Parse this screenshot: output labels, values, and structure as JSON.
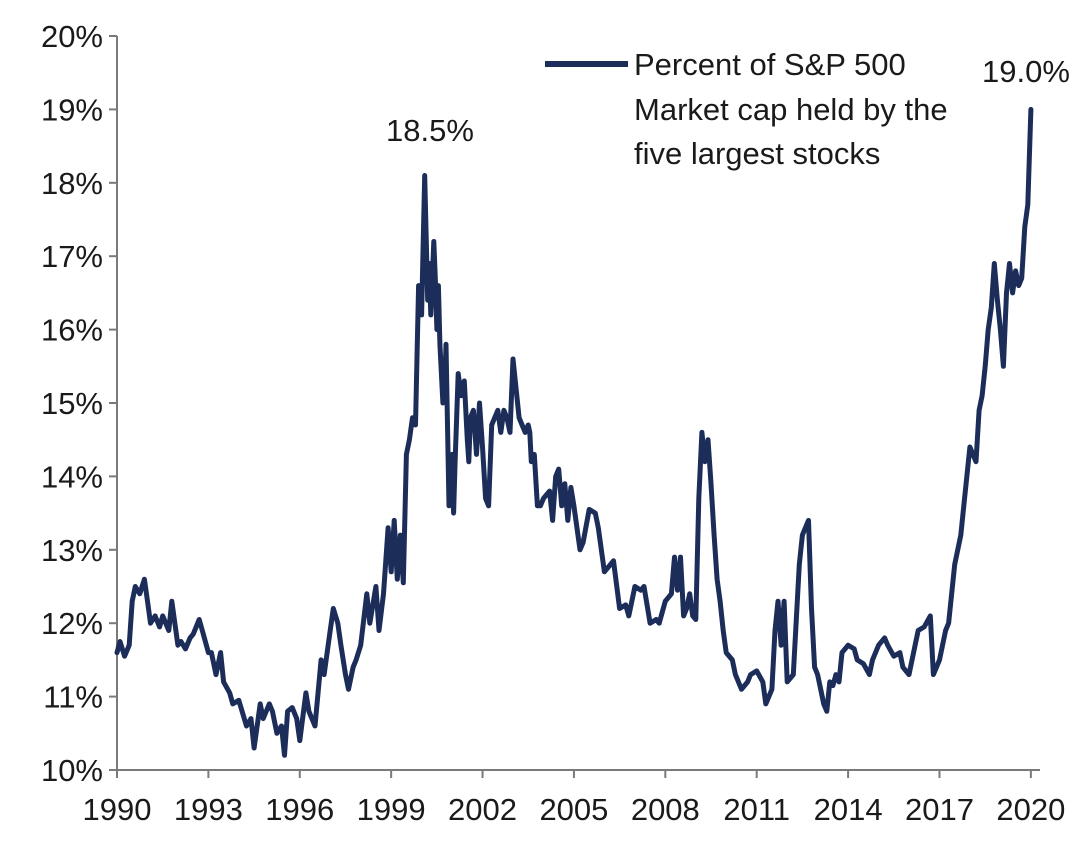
{
  "chart_data": {
    "type": "line",
    "xlim": [
      1990,
      2020.3
    ],
    "ylim": [
      10,
      20
    ],
    "y_tick_values": [
      10,
      11,
      12,
      13,
      14,
      15,
      16,
      17,
      18,
      19,
      20
    ],
    "y_tick_labels": [
      "10%",
      "11%",
      "12%",
      "13%",
      "14%",
      "15%",
      "16%",
      "17%",
      "18%",
      "19%",
      "20%"
    ],
    "x_tick_values": [
      1990,
      1993,
      1996,
      1999,
      2002,
      2005,
      2008,
      2011,
      2014,
      2017,
      2020
    ],
    "x_tick_labels": [
      "1990",
      "1993",
      "1996",
      "1999",
      "2002",
      "2005",
      "2008",
      "2011",
      "2014",
      "2017",
      "2020"
    ],
    "grid": false,
    "legend_position": "top-right",
    "line_color": "#1c2d5a",
    "series": [
      {
        "name": "Percent of S&P 500 Market cap held by the five largest stocks",
        "x": [
          1990.0,
          1990.1,
          1990.25,
          1990.4,
          1990.5,
          1990.6,
          1990.75,
          1990.9,
          1991.0,
          1991.1,
          1991.25,
          1991.4,
          1991.5,
          1991.7,
          1991.8,
          1992.0,
          1992.1,
          1992.25,
          1992.4,
          1992.5,
          1992.7,
          1992.8,
          1993.0,
          1993.1,
          1993.25,
          1993.4,
          1993.5,
          1993.7,
          1993.8,
          1994.0,
          1994.25,
          1994.4,
          1994.5,
          1994.7,
          1994.8,
          1995.0,
          1995.1,
          1995.25,
          1995.4,
          1995.5,
          1995.6,
          1995.75,
          1995.9,
          1996.0,
          1996.2,
          1996.3,
          1996.5,
          1996.7,
          1996.8,
          1997.0,
          1997.1,
          1997.25,
          1997.35,
          1997.5,
          1997.6,
          1997.75,
          1997.85,
          1998.0,
          1998.2,
          1998.3,
          1998.5,
          1998.6,
          1998.75,
          1998.9,
          1999.0,
          1999.1,
          1999.2,
          1999.3,
          1999.4,
          1999.5,
          1999.6,
          1999.7,
          1999.8,
          1999.9,
          2000.0,
          2000.1,
          2000.2,
          2000.25,
          2000.3,
          2000.4,
          2000.45,
          2000.5,
          2000.55,
          2000.6,
          2000.7,
          2000.75,
          2000.8,
          2000.9,
          2001.0,
          2001.05,
          2001.1,
          2001.2,
          2001.3,
          2001.4,
          2001.5,
          2001.55,
          2001.6,
          2001.7,
          2001.8,
          2001.9,
          2002.0,
          2002.1,
          2002.2,
          2002.3,
          2002.4,
          2002.5,
          2002.6,
          2002.7,
          2002.8,
          2002.9,
          2003.0,
          2003.2,
          2003.3,
          2003.4,
          2003.5,
          2003.55,
          2003.6,
          2003.7,
          2003.8,
          2003.9,
          2004.0,
          2004.2,
          2004.3,
          2004.4,
          2004.5,
          2004.6,
          2004.7,
          2004.8,
          2004.9,
          2005.0,
          2005.2,
          2005.3,
          2005.5,
          2005.7,
          2005.8,
          2006.0,
          2006.2,
          2006.3,
          2006.5,
          2006.7,
          2006.8,
          2007.0,
          2007.2,
          2007.3,
          2007.5,
          2007.7,
          2007.8,
          2008.0,
          2008.2,
          2008.3,
          2008.4,
          2008.5,
          2008.6,
          2008.7,
          2008.8,
          2008.9,
          2009.0,
          2009.1,
          2009.2,
          2009.3,
          2009.4,
          2009.5,
          2009.6,
          2009.7,
          2009.8,
          2009.9,
          2010.0,
          2010.2,
          2010.3,
          2010.5,
          2010.7,
          2010.8,
          2011.0,
          2011.2,
          2011.3,
          2011.5,
          2011.6,
          2011.7,
          2011.8,
          2011.9,
          2012.0,
          2012.2,
          2012.4,
          2012.5,
          2012.6,
          2012.7,
          2012.8,
          2012.9,
          2013.0,
          2013.1,
          2013.2,
          2013.3,
          2013.4,
          2013.5,
          2013.6,
          2013.7,
          2013.8,
          2014.0,
          2014.2,
          2014.3,
          2014.5,
          2014.7,
          2014.8,
          2015.0,
          2015.2,
          2015.3,
          2015.5,
          2015.7,
          2015.8,
          2016.0,
          2016.2,
          2016.3,
          2016.5,
          2016.7,
          2016.8,
          2017.0,
          2017.2,
          2017.3,
          2017.5,
          2017.7,
          2017.8,
          2018.0,
          2018.2,
          2018.3,
          2018.4,
          2018.5,
          2018.6,
          2018.7,
          2018.8,
          2018.9,
          2019.0,
          2019.1,
          2019.2,
          2019.3,
          2019.4,
          2019.5,
          2019.6,
          2019.7,
          2019.8,
          2019.9,
          2020.0
        ],
        "values": [
          11.6,
          11.75,
          11.55,
          11.7,
          12.3,
          12.5,
          12.4,
          12.6,
          12.3,
          12.0,
          12.1,
          11.95,
          12.1,
          11.9,
          12.3,
          11.7,
          11.75,
          11.65,
          11.8,
          11.85,
          12.05,
          11.9,
          11.6,
          11.6,
          11.3,
          11.6,
          11.2,
          11.05,
          10.9,
          10.95,
          10.6,
          10.7,
          10.3,
          10.9,
          10.7,
          10.9,
          10.8,
          10.5,
          10.6,
          10.2,
          10.8,
          10.85,
          10.7,
          10.4,
          11.05,
          10.8,
          10.6,
          11.5,
          11.3,
          11.9,
          12.2,
          12.0,
          11.7,
          11.3,
          11.1,
          11.4,
          11.5,
          11.7,
          12.4,
          12.0,
          12.5,
          11.9,
          12.4,
          13.3,
          12.7,
          13.4,
          12.6,
          13.2,
          12.55,
          14.3,
          14.5,
          14.8,
          14.7,
          16.6,
          16.2,
          18.1,
          16.4,
          16.9,
          16.2,
          17.2,
          16.7,
          16.0,
          16.6,
          15.8,
          15.0,
          15.1,
          15.8,
          13.6,
          14.3,
          13.5,
          14.2,
          15.4,
          15.1,
          15.3,
          14.5,
          14.2,
          14.8,
          14.9,
          14.3,
          15.0,
          14.4,
          13.7,
          13.6,
          14.7,
          14.8,
          14.9,
          14.6,
          14.9,
          14.8,
          14.6,
          15.6,
          14.8,
          14.7,
          14.6,
          14.7,
          14.6,
          14.2,
          14.3,
          13.6,
          13.6,
          13.7,
          13.8,
          13.4,
          14.0,
          14.1,
          13.6,
          13.9,
          13.4,
          13.85,
          13.6,
          13.0,
          13.1,
          13.55,
          13.5,
          13.3,
          12.7,
          12.8,
          12.85,
          12.2,
          12.25,
          12.1,
          12.5,
          12.45,
          12.5,
          12.0,
          12.05,
          12.0,
          12.3,
          12.4,
          12.9,
          12.45,
          12.9,
          12.1,
          12.2,
          12.4,
          12.1,
          12.05,
          13.7,
          14.6,
          14.2,
          14.5,
          13.9,
          13.2,
          12.6,
          12.3,
          11.9,
          11.6,
          11.5,
          11.3,
          11.1,
          11.2,
          11.3,
          11.35,
          11.2,
          10.9,
          11.1,
          11.9,
          12.3,
          11.7,
          12.3,
          11.2,
          11.3,
          12.8,
          13.2,
          13.3,
          13.4,
          12.2,
          11.4,
          11.3,
          11.1,
          10.9,
          10.8,
          11.2,
          11.15,
          11.3,
          11.2,
          11.6,
          11.7,
          11.65,
          11.5,
          11.45,
          11.3,
          11.5,
          11.7,
          11.8,
          11.7,
          11.55,
          11.6,
          11.4,
          11.3,
          11.7,
          11.9,
          11.95,
          12.1,
          11.3,
          11.5,
          11.9,
          12.0,
          12.8,
          13.2,
          13.6,
          14.4,
          14.2,
          14.9,
          15.1,
          15.5,
          16.0,
          16.3,
          16.9,
          16.4,
          16.0,
          15.5,
          16.5,
          16.9,
          16.5,
          16.8,
          16.6,
          16.7,
          17.4,
          17.7,
          19.0
        ]
      }
    ],
    "legend_text": [
      "Percent of S&P 500",
      "Market cap held by the",
      "five largest stocks"
    ],
    "annotations": [
      {
        "text": "18.5%",
        "x": 2000.2,
        "y": 18.5
      },
      {
        "text": "19.0%",
        "x": 2020.0,
        "y": 19.0
      }
    ]
  }
}
